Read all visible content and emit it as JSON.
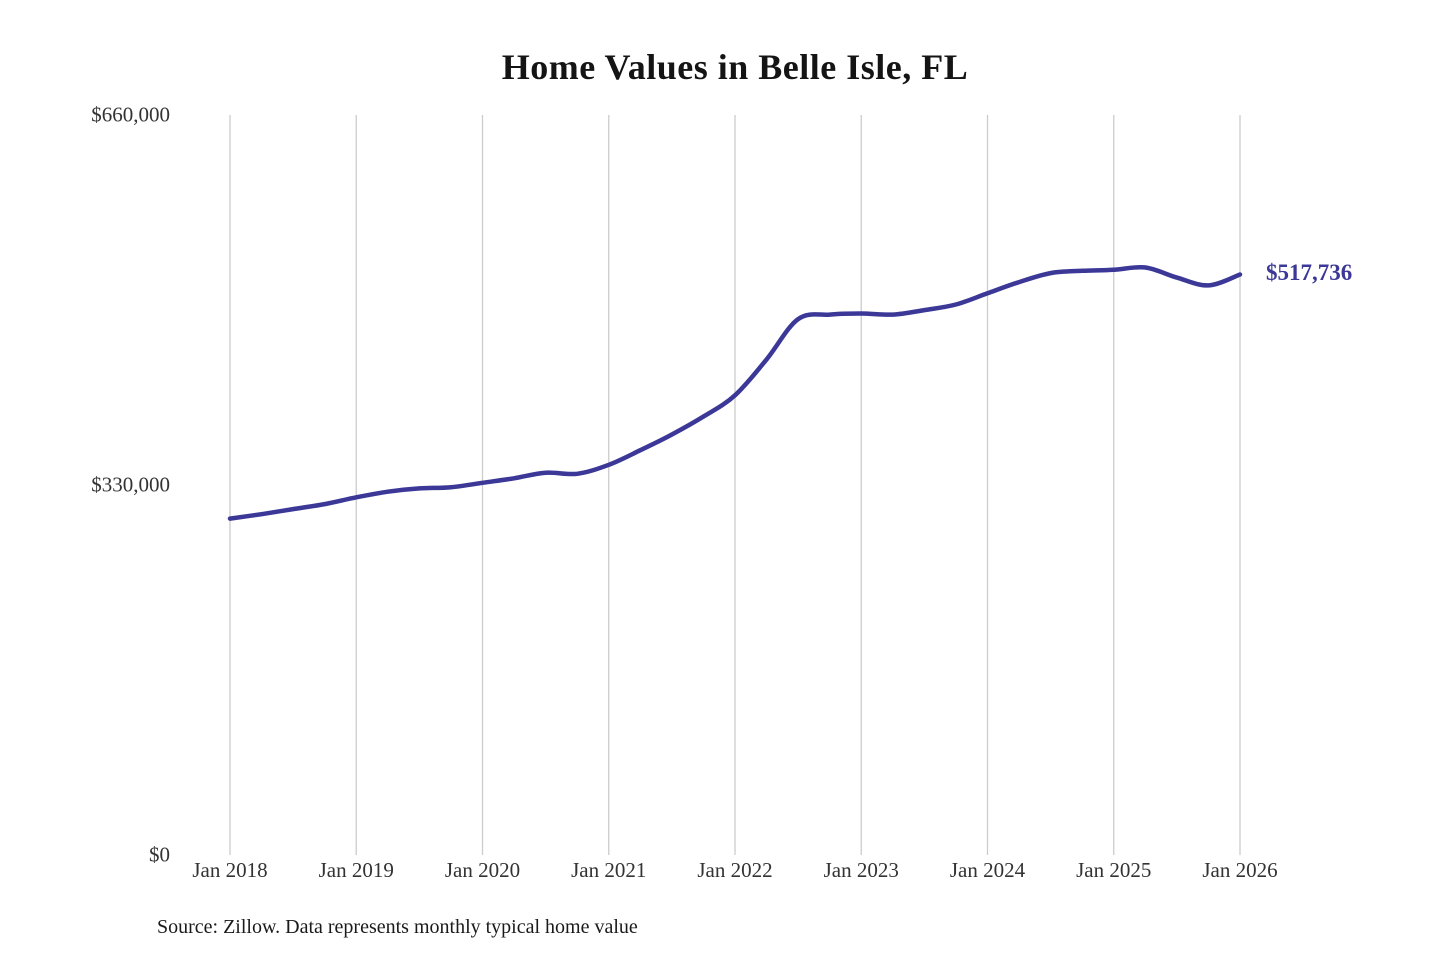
{
  "chart_data": {
    "type": "line",
    "title": "Home Values in Belle Isle, FL",
    "xlabel": "",
    "ylabel": "",
    "ylim": [
      0,
      660000
    ],
    "y_ticks": [
      {
        "label": "$0",
        "value": 0
      },
      {
        "label": "$330,000",
        "value": 330000
      },
      {
        "label": "$660,000",
        "value": 660000
      }
    ],
    "x_ticks": [
      "Jan 2018",
      "Jan 2019",
      "Jan 2020",
      "Jan 2021",
      "Jan 2022",
      "Jan 2023",
      "Jan 2024",
      "Jan 2025",
      "Jan 2026"
    ],
    "x_range": [
      2018,
      2026
    ],
    "grid": "vertical-only",
    "grid_color": "#cccccc",
    "line_color": "#3b3897",
    "end_label": "$517,736",
    "end_label_color": "#3b3897",
    "source": "Source: Zillow. Data represents monthly typical home value",
    "series": [
      {
        "name": "Typical home value",
        "x": [
          2018.0,
          2018.25,
          2018.5,
          2018.75,
          2019.0,
          2019.25,
          2019.5,
          2019.75,
          2020.0,
          2020.25,
          2020.5,
          2020.75,
          2021.0,
          2021.25,
          2021.5,
          2021.75,
          2022.0,
          2022.25,
          2022.5,
          2022.75,
          2023.0,
          2023.25,
          2023.5,
          2023.75,
          2024.0,
          2024.25,
          2024.5,
          2024.75,
          2025.0,
          2025.25,
          2025.5,
          2025.75,
          2026.0
        ],
        "values": [
          300000,
          304000,
          308500,
          313000,
          319000,
          324000,
          327000,
          328000,
          332000,
          336000,
          341000,
          340000,
          348000,
          361000,
          375000,
          391000,
          410000,
          442000,
          478000,
          482000,
          483000,
          482000,
          486000,
          491000,
          501000,
          511000,
          519000,
          521000,
          522000,
          524000,
          515000,
          508000,
          517736
        ]
      }
    ]
  }
}
